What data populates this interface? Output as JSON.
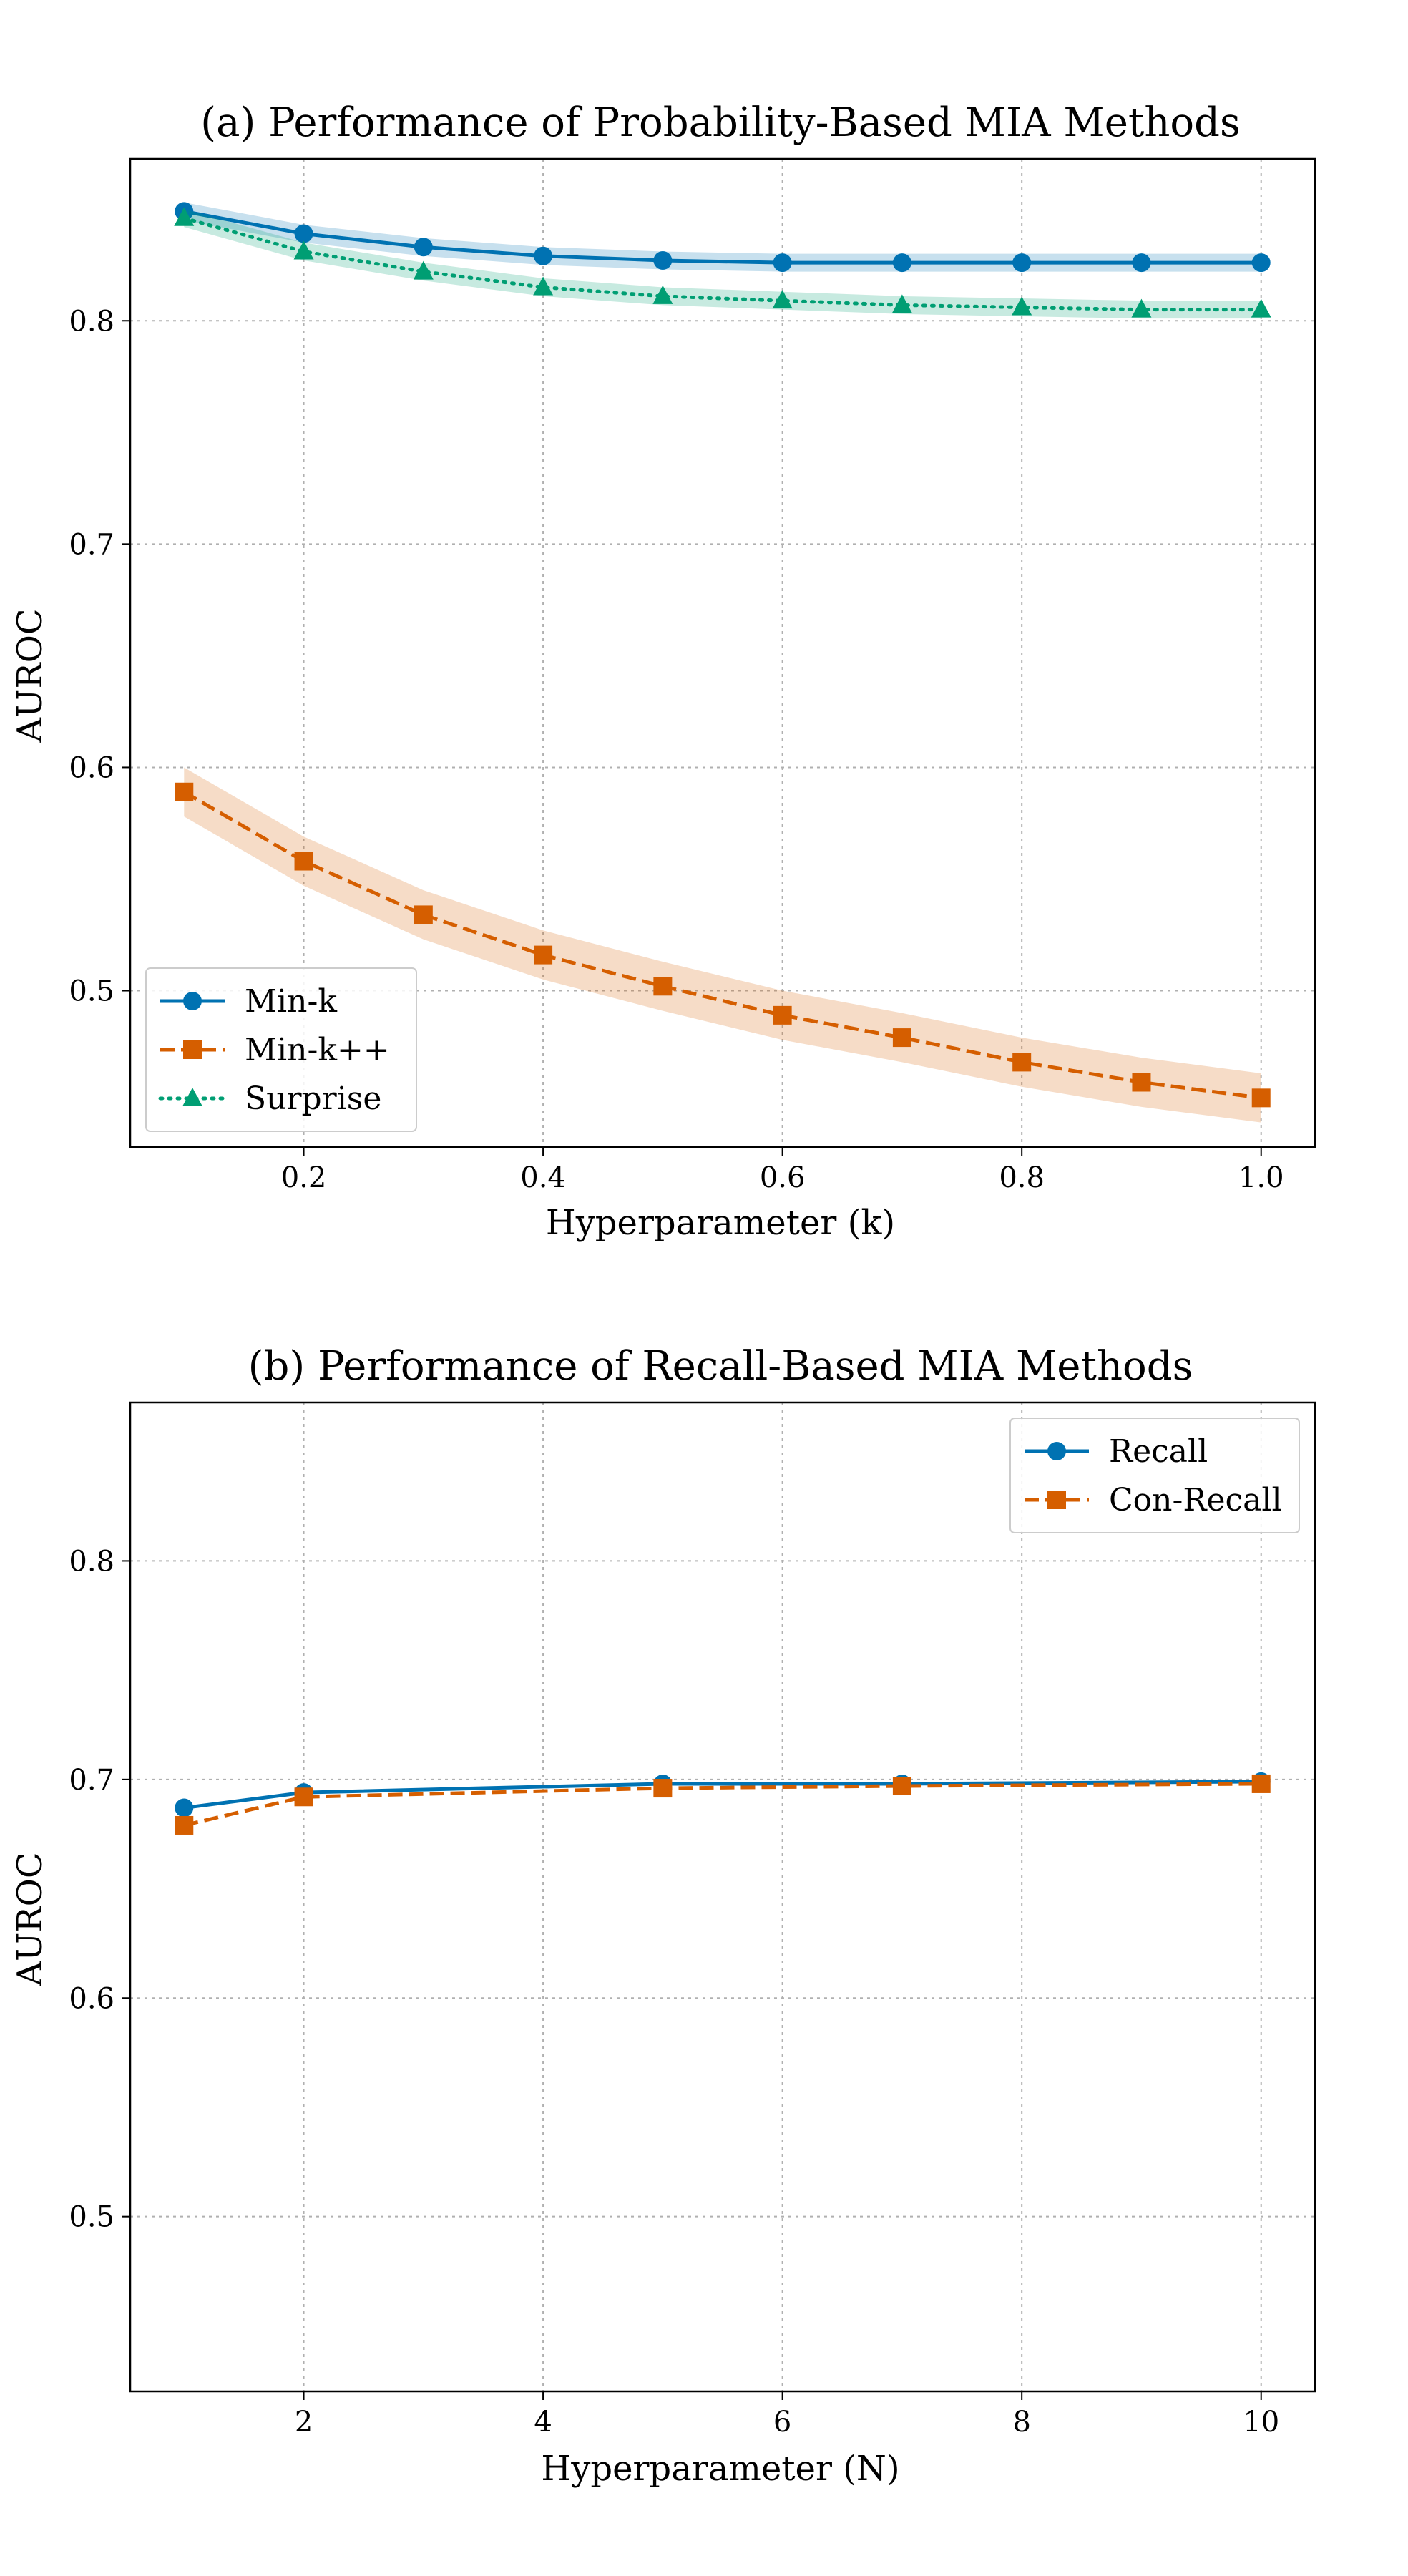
{
  "chart_data": [
    {
      "type": "line",
      "title": "(a) Performance of Probability-Based MIA Methods",
      "xlabel": "Hyperparameter (k)",
      "ylabel": "AUROC",
      "xlim": [
        0.055,
        1.045
      ],
      "ylim": [
        0.43,
        0.8725
      ],
      "xticks": [
        0.2,
        0.4,
        0.6,
        0.8,
        1.0
      ],
      "xtick_labels": [
        "0.2",
        "0.4",
        "0.6",
        "0.8",
        "1.0"
      ],
      "yticks": [
        0.5,
        0.6,
        0.7,
        0.8
      ],
      "ytick_labels": [
        "0.5",
        "0.6",
        "0.7",
        "0.8"
      ],
      "grid": true,
      "legend_position": "lower-left",
      "x": [
        0.1,
        0.2,
        0.3,
        0.4,
        0.5,
        0.6,
        0.7,
        0.8,
        0.9,
        1.0
      ],
      "series": [
        {
          "name": "Min-k",
          "values": [
            0.849,
            0.839,
            0.833,
            0.829,
            0.827,
            0.826,
            0.826,
            0.826,
            0.826,
            0.826
          ],
          "band": 0.004,
          "color": "#0072B2",
          "marker": "circle",
          "linestyle": "solid"
        },
        {
          "name": "Min-k++",
          "values": [
            0.589,
            0.558,
            0.534,
            0.516,
            0.502,
            0.489,
            0.479,
            0.468,
            0.459,
            0.452
          ],
          "band": 0.011,
          "color": "#D55E00",
          "marker": "square",
          "linestyle": "dashed"
        },
        {
          "name": "Surprise",
          "values": [
            0.846,
            0.831,
            0.822,
            0.815,
            0.811,
            0.809,
            0.807,
            0.806,
            0.805,
            0.805
          ],
          "band": 0.004,
          "color": "#009E73",
          "marker": "triangle",
          "linestyle": "dotted"
        }
      ]
    },
    {
      "type": "line",
      "title": "(b) Performance of Recall-Based MIA Methods",
      "xlabel": "Hyperparameter (N)",
      "ylabel": "AUROC",
      "xlim": [
        0.55,
        10.45
      ],
      "ylim": [
        0.42,
        0.8725
      ],
      "xticks": [
        2,
        4,
        6,
        8,
        10
      ],
      "xtick_labels": [
        "2",
        "4",
        "6",
        "8",
        "10"
      ],
      "yticks": [
        0.5,
        0.6,
        0.7,
        0.8
      ],
      "ytick_labels": [
        "0.5",
        "0.6",
        "0.7",
        "0.8"
      ],
      "grid": true,
      "legend_position": "upper-right",
      "x": [
        1,
        2,
        5,
        7,
        10
      ],
      "series": [
        {
          "name": "Recall",
          "values": [
            0.687,
            0.694,
            0.698,
            0.698,
            0.699
          ],
          "color": "#0072B2",
          "marker": "circle",
          "linestyle": "solid"
        },
        {
          "name": "Con-Recall",
          "values": [
            0.679,
            0.692,
            0.696,
            0.697,
            0.698
          ],
          "color": "#D55E00",
          "marker": "square",
          "linestyle": "dashed"
        }
      ]
    }
  ]
}
